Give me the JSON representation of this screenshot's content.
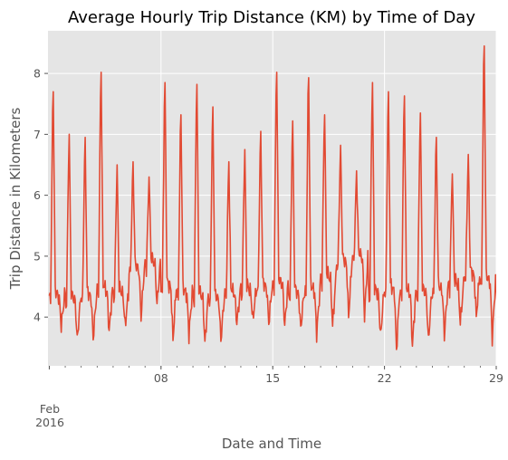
{
  "chart_data": {
    "type": "line",
    "title": "Average Hourly Trip Distance (KM) by Time of Day",
    "xlabel": "Date and Time",
    "ylabel": "Trip Distance in Kilometers",
    "x_range": [
      "2016-02-01 00:00",
      "2016-02-29 23:00"
    ],
    "xlim_days": [
      0.92,
      29.0
    ],
    "ylim": [
      3.2,
      8.7
    ],
    "y_ticks": [
      {
        "value": 4,
        "label": "4"
      },
      {
        "value": 5,
        "label": "5"
      },
      {
        "value": 6,
        "label": "6"
      },
      {
        "value": 7,
        "label": "7"
      },
      {
        "value": 8,
        "label": "8"
      }
    ],
    "x_major_ticks": [
      {
        "day": 8,
        "label": "08"
      },
      {
        "day": 15,
        "label": "15"
      },
      {
        "day": 22,
        "label": "22"
      },
      {
        "day": 29,
        "label": "29"
      }
    ],
    "x_start_label": {
      "day": 1,
      "month": "Feb",
      "year": "2016"
    },
    "grid": true,
    "legend": "none",
    "line_color": "#E24A33",
    "background_color": "#E5E5E5",
    "grid_color": "#FFFFFF",
    "series": [
      {
        "daily_peaks": [
          7.7,
          7.0,
          6.95,
          8.02,
          6.5,
          6.55,
          6.3,
          7.85,
          7.32,
          7.82,
          7.45,
          6.55,
          6.75,
          7.05,
          8.02,
          7.22,
          7.93,
          7.32,
          6.82,
          6.4,
          7.85,
          7.7,
          7.63,
          7.35,
          6.95,
          6.35,
          6.67,
          8.45,
          4.55
        ],
        "daily_troughs": [
          3.85,
          3.62,
          3.65,
          3.75,
          3.85,
          4.0,
          4.2,
          3.62,
          3.7,
          3.56,
          3.62,
          3.9,
          3.95,
          3.9,
          3.85,
          3.8,
          3.72,
          3.85,
          4.0,
          4.0,
          3.67,
          3.45,
          3.52,
          3.6,
          3.7,
          3.9,
          4.0,
          3.65,
          3.67
        ],
        "daily_base": [
          4.35,
          4.3,
          4.35,
          4.45,
          4.4,
          4.8,
          4.9,
          4.5,
          4.4,
          4.35,
          4.3,
          4.4,
          4.45,
          4.5,
          4.55,
          4.4,
          4.45,
          4.65,
          4.9,
          5.0,
          4.4,
          4.45,
          4.4,
          4.4,
          4.45,
          4.55,
          4.7,
          4.6,
          4.4
        ]
      }
    ]
  }
}
